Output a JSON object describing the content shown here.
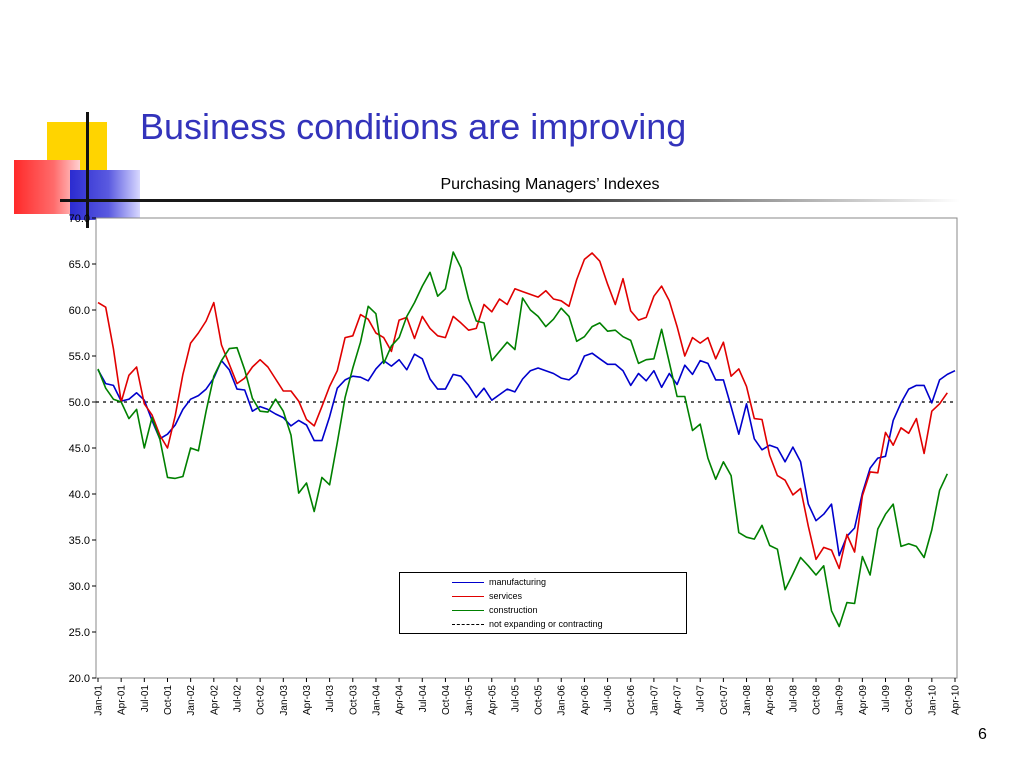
{
  "slide": {
    "title": "Business conditions are improving",
    "page_number": "6"
  },
  "colors": {
    "title": "#3333bb",
    "manufacturing": "#0000cc",
    "services": "#e00000",
    "construction": "#008000",
    "reference": "#000000"
  },
  "chart_data": {
    "type": "line",
    "title": "Purchasing Managers’ Indexes",
    "xlabel": "",
    "ylabel": "",
    "ylim": [
      20,
      70
    ],
    "yticks": [
      "20.0",
      "25.0",
      "30.0",
      "35.0",
      "40.0",
      "45.0",
      "50.0",
      "55.0",
      "60.0",
      "65.0",
      "70.0"
    ],
    "x_start": "Jan-01",
    "x_end": "Apr-10",
    "xticks": [
      "Jan-01",
      "Apr-01",
      "Jul-01",
      "Oct-01",
      "Jan-02",
      "Apr-02",
      "Jul-02",
      "Oct-02",
      "Jan-03",
      "Apr-03",
      "Jul-03",
      "Oct-03",
      "Jan-04",
      "Apr-04",
      "Jul-04",
      "Oct-04",
      "Jan-05",
      "Apr-05",
      "Jul-05",
      "Oct-05",
      "Jan-06",
      "Apr-06",
      "Jul-06",
      "Oct-06",
      "Jan-07",
      "Apr-07",
      "Jul-07",
      "Oct-07",
      "Jan-08",
      "Apr-08",
      "Jul-08",
      "Oct-08",
      "Jan-09",
      "Apr-09",
      "Jul-09",
      "Oct-09",
      "Jan-10",
      "Apr-10"
    ],
    "grid": false,
    "legend_position": "bottom-center",
    "legend": [
      "manufacturing",
      "services",
      "construction",
      "not expanding or contracting"
    ],
    "reference_line": {
      "name": "not expanding or contracting",
      "value": 50.0,
      "style": "dotted"
    },
    "series": [
      {
        "name": "manufacturing",
        "color": "#0000cc",
        "values": [
          53.5,
          52.0,
          51.8,
          50.1,
          50.3,
          51.0,
          50.2,
          48.0,
          46.0,
          46.5,
          47.5,
          49.2,
          50.3,
          50.7,
          51.4,
          52.6,
          54.5,
          53.5,
          51.4,
          51.3,
          49.0,
          49.5,
          49.2,
          48.7,
          48.3,
          47.4,
          48.0,
          47.5,
          45.8,
          45.8,
          48.4,
          51.5,
          52.4,
          52.8,
          52.7,
          52.3,
          53.6,
          54.5,
          53.9,
          54.6,
          53.5,
          55.2,
          54.7,
          52.5,
          51.4,
          51.4,
          53.0,
          52.8,
          51.8,
          50.5,
          51.5,
          50.2,
          50.8,
          51.4,
          51.1,
          52.5,
          53.4,
          53.7,
          53.4,
          53.1,
          52.6,
          52.4,
          53.1,
          55.0,
          55.3,
          54.7,
          54.1,
          54.1,
          53.4,
          51.8,
          53.1,
          52.3,
          53.4,
          51.6,
          53.1,
          51.9,
          54.0,
          53.0,
          54.5,
          54.2,
          52.4,
          52.4,
          49.5,
          46.5,
          49.8,
          46.0,
          44.8,
          45.3,
          45.0,
          43.5,
          45.1,
          43.5,
          38.9,
          37.1,
          37.8,
          38.9,
          33.3,
          35.4,
          36.3,
          40.1,
          42.8,
          43.9,
          44.1,
          48.0,
          49.9,
          51.4,
          51.8,
          51.8,
          49.9,
          52.4,
          53.0,
          53.4
        ]
      },
      {
        "name": "services",
        "color": "#e00000",
        "values": [
          60.8,
          60.3,
          55.8,
          50.0,
          52.9,
          53.8,
          49.8,
          48.6,
          46.4,
          45.0,
          48.5,
          53.0,
          56.4,
          57.5,
          58.8,
          60.8,
          56.2,
          54.1,
          52.0,
          52.6,
          53.8,
          54.6,
          53.8,
          52.5,
          51.2,
          51.2,
          50.1,
          48.1,
          47.4,
          49.5,
          51.7,
          53.4,
          57.0,
          57.2,
          59.5,
          59.0,
          57.5,
          57.0,
          55.5,
          58.9,
          59.2,
          56.9,
          59.3,
          58.0,
          57.2,
          57.0,
          59.3,
          58.6,
          57.8,
          58.0,
          60.6,
          59.8,
          61.2,
          60.6,
          62.3,
          62.0,
          61.7,
          61.4,
          62.1,
          61.2,
          61.0,
          60.4,
          63.3,
          65.5,
          66.2,
          65.3,
          62.8,
          60.6,
          63.4,
          59.9,
          58.9,
          59.2,
          61.5,
          62.6,
          61.0,
          58.2,
          55.0,
          57.0,
          56.4,
          57.0,
          54.7,
          56.5,
          52.8,
          53.6,
          51.7,
          48.2,
          48.1,
          44.2,
          42.0,
          41.5,
          39.9,
          40.6,
          36.5,
          32.9,
          34.2,
          33.9,
          31.9,
          35.6,
          33.7,
          39.8,
          42.4,
          42.3,
          46.7,
          45.3,
          47.2,
          46.6,
          48.2,
          44.4,
          49.0,
          49.8,
          51.0
        ]
      },
      {
        "name": "construction",
        "color": "#008000",
        "values": [
          53.6,
          51.5,
          50.3,
          50.0,
          48.2,
          49.2,
          45.0,
          48.3,
          46.0,
          41.8,
          41.7,
          41.9,
          45.0,
          44.7,
          49.0,
          52.8,
          54.5,
          55.8,
          55.9,
          53.5,
          50.4,
          49.0,
          48.9,
          50.3,
          49.0,
          46.4,
          40.1,
          41.2,
          38.1,
          41.8,
          41.0,
          45.6,
          50.5,
          53.7,
          56.5,
          60.4,
          59.6,
          54.2,
          56.1,
          57.0,
          59.3,
          60.8,
          62.6,
          64.1,
          61.5,
          62.3,
          66.3,
          64.6,
          61.2,
          58.8,
          58.6,
          54.5,
          55.5,
          56.5,
          55.7,
          61.3,
          60.0,
          59.3,
          58.2,
          59.0,
          60.2,
          59.3,
          56.6,
          57.1,
          58.2,
          58.6,
          57.7,
          57.8,
          57.1,
          56.7,
          54.2,
          54.6,
          54.7,
          57.9,
          54.3,
          50.6,
          50.6,
          46.9,
          47.6,
          43.9,
          41.6,
          43.5,
          42.0,
          35.8,
          35.3,
          35.1,
          36.6,
          34.4,
          34.0,
          29.6,
          31.3,
          33.1,
          32.2,
          31.2,
          32.2,
          27.3,
          25.6,
          28.2,
          28.1,
          33.2,
          31.2,
          36.2,
          37.8,
          38.9,
          34.3,
          34.6,
          34.3,
          33.1,
          36.1,
          40.4,
          42.2
        ]
      }
    ]
  }
}
